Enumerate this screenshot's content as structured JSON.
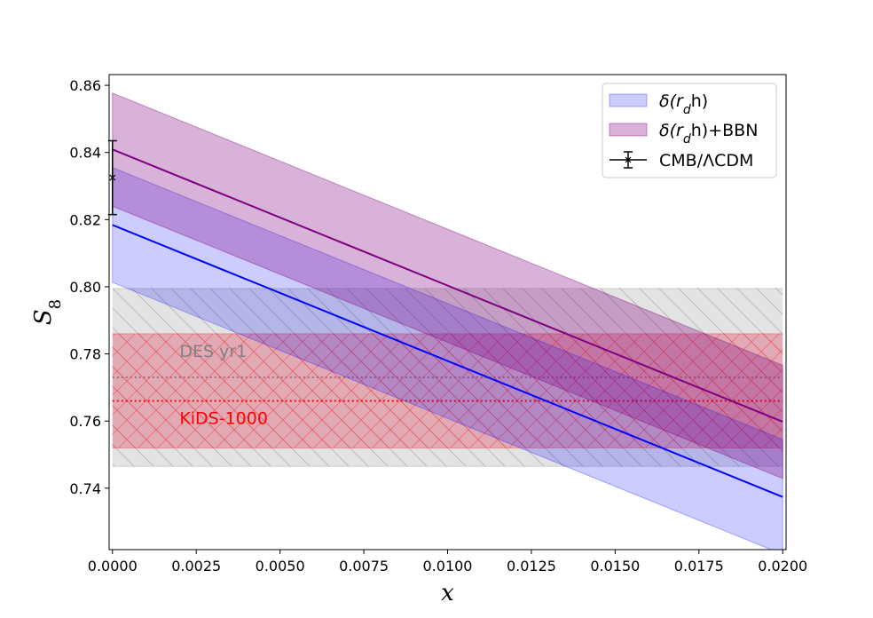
{
  "chart_data": {
    "type": "line",
    "xlabel": "x",
    "ylabel": "S",
    "ylabel_subscript": "8",
    "xlim": [
      -0.0001,
      0.0201
    ],
    "ylim": [
      0.7217,
      0.8632
    ],
    "x_ticks": [
      "0.0000",
      "0.0025",
      "0.0050",
      "0.0075",
      "0.0100",
      "0.0125",
      "0.0150",
      "0.0175",
      "0.0200"
    ],
    "x_tick_values": [
      0,
      0.0025,
      0.005,
      0.0075,
      0.01,
      0.0125,
      0.015,
      0.0175,
      0.02
    ],
    "y_ticks": [
      "0.74",
      "0.76",
      "0.78",
      "0.80",
      "0.82",
      "0.84",
      "0.86"
    ],
    "y_tick_values": [
      0.74,
      0.76,
      0.78,
      0.8,
      0.82,
      0.84,
      0.86
    ],
    "series": [
      {
        "name": "δ(r_d h)",
        "legend": {
          "main": "δ(r",
          "sub": "d",
          "tail": "h)"
        },
        "color": "#0000ff",
        "fill": "#0000ff",
        "fill_opacity": 0.2,
        "x": [
          0,
          0.02
        ],
        "y": [
          0.8184,
          0.7374
        ],
        "y_upper": [
          0.8355,
          0.7545
        ],
        "y_lower": [
          0.8013,
          0.7203
        ]
      },
      {
        "name": "δ(r_d h)+BBN",
        "legend": {
          "main": "δ(r",
          "sub": "d",
          "tail": "h)+BBN"
        },
        "color": "#800080",
        "fill": "#800080",
        "fill_opacity": 0.3,
        "x": [
          0,
          0.02
        ],
        "y": [
          0.8409,
          0.7598
        ],
        "y_upper": [
          0.8577,
          0.7766
        ],
        "y_lower": [
          0.824,
          0.7429
        ]
      }
    ],
    "errorbar": {
      "name": "CMB/ΛCDM",
      "x": 0,
      "y": 0.8325,
      "yerr": 0.011,
      "color": "#000000"
    },
    "bands": [
      {
        "name": "DES yr1",
        "center": 0.773,
        "low": 0.7465,
        "high": 0.7995,
        "fill": "#808080",
        "fill_opacity": 0.22,
        "line_color": "#808080",
        "label_color": "#808080",
        "hatch": "\\",
        "label_x": 0.002,
        "label_y": 0.781
      },
      {
        "name": "KiDS-1000",
        "center": 0.766,
        "low": 0.752,
        "high": 0.786,
        "fill": "#dc143c",
        "fill_opacity": 0.28,
        "line_color": "#ff0000",
        "label_color": "#ff0000",
        "hatch": "x",
        "label_x": 0.002,
        "label_y": 0.761
      }
    ],
    "legend_position": "top-right",
    "grid": false
  }
}
